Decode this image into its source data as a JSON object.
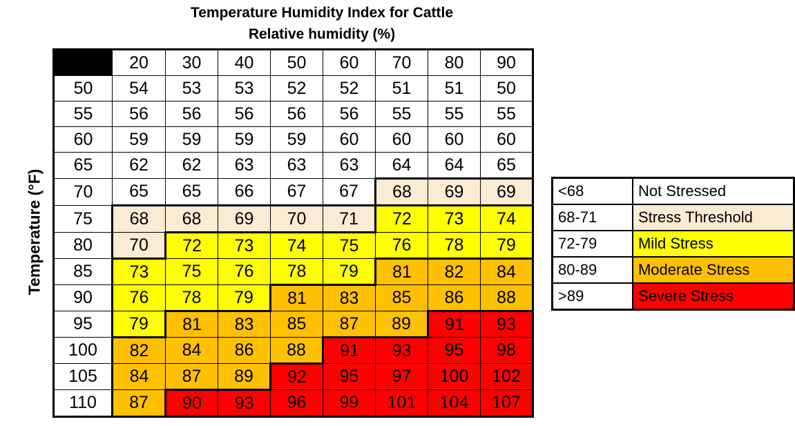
{
  "title": "Temperature Humidity Index for Cattle",
  "subtitle": "Relative humidity (%)",
  "y_axis_label": "Temperature (°F)",
  "colors": {
    "background": "#FFFFFF",
    "grid_border": "#000000",
    "corner_fill": "#000000",
    "text": "#000000"
  },
  "chart_data": {
    "type": "heatmap",
    "title": "Temperature Humidity Index for Cattle",
    "xlabel": "Relative humidity (%)",
    "ylabel": "Temperature (°F)",
    "x_categories": [
      20,
      30,
      40,
      50,
      60,
      70,
      80,
      90
    ],
    "y_categories": [
      50,
      55,
      60,
      65,
      70,
      75,
      80,
      85,
      90,
      95,
      100,
      105,
      110
    ],
    "values": [
      [
        54,
        53,
        53,
        52,
        52,
        51,
        51,
        50
      ],
      [
        56,
        56,
        56,
        56,
        56,
        55,
        55,
        55
      ],
      [
        59,
        59,
        59,
        59,
        60,
        60,
        60,
        60
      ],
      [
        62,
        62,
        63,
        63,
        63,
        64,
        64,
        65
      ],
      [
        65,
        65,
        66,
        67,
        67,
        68,
        69,
        69
      ],
      [
        68,
        68,
        69,
        70,
        71,
        72,
        73,
        74
      ],
      [
        70,
        72,
        73,
        74,
        75,
        76,
        78,
        79
      ],
      [
        73,
        75,
        76,
        78,
        79,
        81,
        82,
        84
      ],
      [
        76,
        78,
        79,
        81,
        83,
        85,
        86,
        88
      ],
      [
        79,
        81,
        83,
        85,
        87,
        89,
        91,
        93
      ],
      [
        82,
        84,
        86,
        88,
        91,
        93,
        95,
        98
      ],
      [
        84,
        87,
        89,
        92,
        95,
        97,
        100,
        102
      ],
      [
        87,
        90,
        93,
        96,
        99,
        101,
        104,
        107
      ]
    ],
    "zones": [
      {
        "range": "<68",
        "label": "Not Stressed",
        "color": "#FFFFFF",
        "min": null,
        "max": 67
      },
      {
        "range": "68-71",
        "label": "Stress Threshold",
        "color": "#FAEBD2",
        "min": 68,
        "max": 71
      },
      {
        "range": "72-79",
        "label": "Mild Stress",
        "color": "#FFFF00",
        "min": 72,
        "max": 79
      },
      {
        "range": "80-89",
        "label": "Moderate Stress",
        "color": "#FFC000",
        "min": 80,
        "max": 89
      },
      {
        "range": ">89",
        "label": "Severe Stress",
        "color": "#FF0000",
        "min": 90,
        "max": null
      }
    ],
    "legend_position": "right",
    "grid": true
  }
}
